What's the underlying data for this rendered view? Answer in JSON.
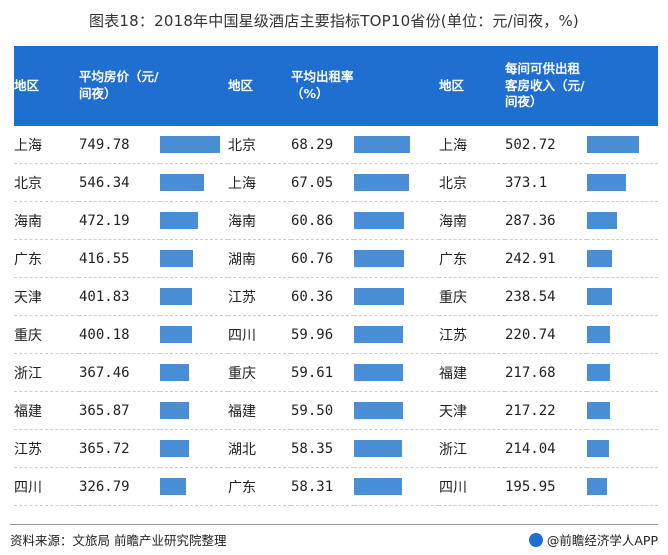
{
  "title": "图表18：2018年中国星级酒店主要指标TOP10省份(单位：元/间夜，%)",
  "footer": {
    "source": "资料来源：文旅局 前瞻产业研究院整理",
    "brand": "@前瞻经济学人APP"
  },
  "colors": {
    "header": "#1f6fd1",
    "bar": "#4a8fd6"
  },
  "chart_data": {
    "type": "table",
    "panels": [
      {
        "region_header": "地区",
        "value_header": "平均房价（元/间夜）",
        "max": 749.78,
        "rows": [
          {
            "region": "上海",
            "value": 749.78,
            "label": "749.78"
          },
          {
            "region": "北京",
            "value": 546.34,
            "label": "546.34"
          },
          {
            "region": "海南",
            "value": 472.19,
            "label": "472.19"
          },
          {
            "region": "广东",
            "value": 416.55,
            "label": "416.55"
          },
          {
            "region": "天津",
            "value": 401.83,
            "label": "401.83"
          },
          {
            "region": "重庆",
            "value": 400.18,
            "label": "400.18"
          },
          {
            "region": "浙江",
            "value": 367.46,
            "label": "367.46"
          },
          {
            "region": "福建",
            "value": 365.87,
            "label": "365.87"
          },
          {
            "region": "江苏",
            "value": 365.72,
            "label": "365.72"
          },
          {
            "region": "四川",
            "value": 326.79,
            "label": "326.79"
          }
        ]
      },
      {
        "region_header": "地区",
        "value_header": "平均出租率（%）",
        "max": 68.29,
        "rows": [
          {
            "region": "北京",
            "value": 68.29,
            "label": "68.29"
          },
          {
            "region": "上海",
            "value": 67.05,
            "label": "67.05"
          },
          {
            "region": "海南",
            "value": 60.86,
            "label": "60.86"
          },
          {
            "region": "湖南",
            "value": 60.76,
            "label": "60.76"
          },
          {
            "region": "江苏",
            "value": 60.36,
            "label": "60.36"
          },
          {
            "region": "四川",
            "value": 59.96,
            "label": "59.96"
          },
          {
            "region": "重庆",
            "value": 59.61,
            "label": "59.61"
          },
          {
            "region": "福建",
            "value": 59.5,
            "label": "59.50"
          },
          {
            "region": "湖北",
            "value": 58.35,
            "label": "58.35"
          },
          {
            "region": "广东",
            "value": 58.31,
            "label": "58.31"
          }
        ]
      },
      {
        "region_header": "地区",
        "value_header": "每间可供出租客房收入（元/间夜）",
        "max": 502.72,
        "rows": [
          {
            "region": "上海",
            "value": 502.72,
            "label": "502.72"
          },
          {
            "region": "北京",
            "value": 373.1,
            "label": "373.1"
          },
          {
            "region": "海南",
            "value": 287.36,
            "label": "287.36"
          },
          {
            "region": "广东",
            "value": 242.91,
            "label": "242.91"
          },
          {
            "region": "重庆",
            "value": 238.54,
            "label": "238.54"
          },
          {
            "region": "江苏",
            "value": 220.74,
            "label": "220.74"
          },
          {
            "region": "福建",
            "value": 217.68,
            "label": "217.68"
          },
          {
            "region": "天津",
            "value": 217.22,
            "label": "217.22"
          },
          {
            "region": "浙江",
            "value": 214.04,
            "label": "214.04"
          },
          {
            "region": "四川",
            "value": 195.95,
            "label": "195.95"
          }
        ]
      }
    ]
  }
}
